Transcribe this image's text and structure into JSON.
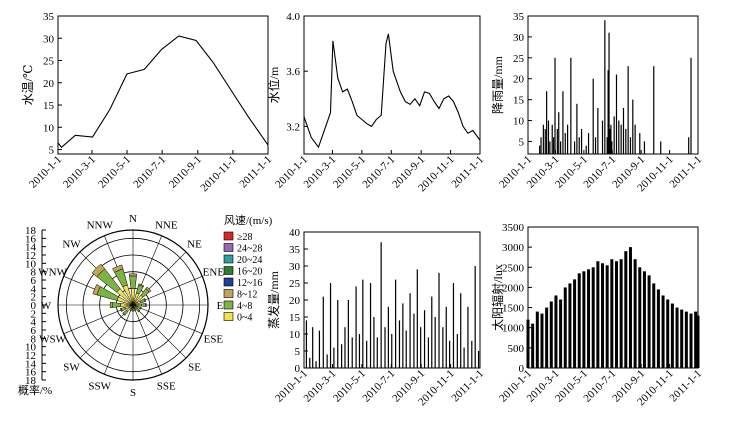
{
  "chart_data": [
    {
      "type": "line",
      "ylabel": "水温/℃",
      "x_ticks": [
        "2010-1-1",
        "2010-3-1",
        "2010-5-1",
        "2010-7-1",
        "2010-9-1",
        "2010-11-1",
        "2011-1-1"
      ],
      "y_ticks": [
        "5",
        "10",
        "15",
        "20",
        "25",
        "30",
        "35"
      ],
      "ylim": [
        4,
        35
      ],
      "x_days": [
        0,
        6,
        30,
        60,
        90,
        120,
        150,
        180,
        210,
        240,
        270,
        300,
        330,
        365
      ],
      "values": [
        6.5,
        5.5,
        8.2,
        7.8,
        14,
        22,
        23,
        27.5,
        30.5,
        29.5,
        24.5,
        18.5,
        12.5,
        6
      ]
    },
    {
      "type": "line",
      "ylabel": "水位/m",
      "x_ticks": [
        "2010-1-1",
        "2010-3-1",
        "2010-5-1",
        "2010-7-1",
        "2010-9-1",
        "2010-11-1",
        "2011-1-1"
      ],
      "y_ticks": [
        "3.2",
        "3.6",
        "4.0"
      ],
      "ylim": [
        3.0,
        4.0
      ],
      "x_days": [
        0,
        15,
        30,
        45,
        55,
        60,
        70,
        80,
        90,
        100,
        110,
        120,
        130,
        140,
        150,
        160,
        170,
        175,
        185,
        200,
        210,
        220,
        230,
        240,
        250,
        260,
        270,
        280,
        290,
        300,
        310,
        320,
        330,
        340,
        350,
        365
      ],
      "values": [
        3.27,
        3.12,
        3.05,
        3.2,
        3.3,
        3.82,
        3.55,
        3.45,
        3.47,
        3.38,
        3.28,
        3.25,
        3.22,
        3.2,
        3.25,
        3.28,
        3.8,
        3.87,
        3.6,
        3.45,
        3.38,
        3.36,
        3.4,
        3.35,
        3.45,
        3.44,
        3.38,
        3.33,
        3.4,
        3.42,
        3.38,
        3.3,
        3.2,
        3.15,
        3.17,
        3.1
      ]
    },
    {
      "type": "bar",
      "ylabel": "降雨量/mm",
      "x_ticks": [
        "2010-1-1",
        "2010-3-1",
        "2010-5-1",
        "2010-7-1",
        "2010-9-1",
        "2010-11-1",
        "2011-1-1"
      ],
      "y_ticks": [
        "5",
        "10",
        "15",
        "20",
        "25",
        "30",
        "35"
      ],
      "ylim": [
        2,
        35
      ],
      "x_days": [
        25,
        28,
        33,
        37,
        40,
        44,
        47,
        52,
        55,
        58,
        63,
        66,
        70,
        75,
        80,
        85,
        92,
        100,
        105,
        110,
        115,
        125,
        130,
        140,
        145,
        150,
        160,
        165,
        170,
        172,
        174,
        176,
        178,
        180,
        185,
        190,
        195,
        200,
        205,
        210,
        215,
        220,
        225,
        230,
        240,
        250,
        270,
        285,
        345,
        350
      ],
      "values": [
        4,
        6,
        9,
        8,
        17,
        10,
        5,
        9,
        6,
        25,
        8,
        12,
        5,
        17,
        7,
        9,
        25,
        5,
        14,
        6,
        8,
        4,
        7,
        20,
        6,
        13,
        10,
        34,
        6,
        22,
        31,
        8,
        9,
        5,
        11,
        21,
        10,
        9,
        13,
        8,
        23,
        6,
        15,
        9,
        7,
        5,
        23,
        5,
        6,
        25
      ]
    },
    {
      "type": "bar",
      "ylabel": "蒸发量/mm",
      "x_ticks": [
        "2010-1-1",
        "2010-3-1",
        "2010-5-1",
        "2010-7-1",
        "2010-9-1",
        "2010-11-1",
        "2011-1-1"
      ],
      "y_ticks": [
        "0",
        "5",
        "10",
        "15",
        "20",
        "25",
        "30",
        "35",
        "40"
      ],
      "ylim": [
        0,
        40
      ],
      "x_days": [
        5,
        12,
        18,
        25,
        32,
        40,
        48,
        55,
        62,
        70,
        78,
        85,
        92,
        100,
        108,
        115,
        122,
        130,
        138,
        145,
        152,
        160,
        168,
        175,
        182,
        190,
        198,
        205,
        212,
        220,
        228,
        235,
        242,
        250,
        258,
        265,
        272,
        280,
        288,
        295,
        302,
        310,
        318,
        325,
        332,
        340,
        348,
        355,
        362
      ],
      "values": [
        14,
        3,
        12,
        2,
        11,
        21,
        4,
        25,
        6,
        20,
        7,
        12,
        20,
        9,
        24,
        10,
        26,
        8,
        25,
        15,
        9,
        37,
        12,
        18,
        10,
        26,
        14,
        19,
        11,
        22,
        16,
        29,
        12,
        17,
        9,
        21,
        15,
        28,
        12,
        18,
        8,
        25,
        10,
        22,
        6,
        18,
        8,
        30,
        5
      ]
    },
    {
      "type": "bar",
      "ylabel": "太阳辐射/lux",
      "x_ticks": [
        "2010-1-1",
        "2010-3-1",
        "2010-5-1",
        "2010-7-1",
        "2010-9-1",
        "2010-11-1",
        "2011-1-1"
      ],
      "y_ticks": [
        "0",
        "500",
        "1000",
        "1500",
        "2000",
        "2500",
        "3000",
        "3500"
      ],
      "ylim": [
        0,
        3500
      ],
      "x_days": [
        0,
        10,
        20,
        30,
        40,
        50,
        60,
        70,
        80,
        90,
        100,
        110,
        120,
        130,
        140,
        150,
        160,
        170,
        180,
        190,
        200,
        210,
        220,
        230,
        240,
        250,
        260,
        270,
        280,
        290,
        300,
        310,
        320,
        330,
        340,
        350,
        360,
        365
      ],
      "values": [
        1200,
        1100,
        1400,
        1350,
        1500,
        1650,
        1800,
        1700,
        2000,
        2100,
        2200,
        2350,
        2400,
        2450,
        2500,
        2650,
        2600,
        2550,
        2700,
        2650,
        2700,
        2900,
        3000,
        2700,
        2500,
        2400,
        2300,
        2100,
        1950,
        1800,
        1700,
        1600,
        1500,
        1450,
        1400,
        1350,
        1400,
        1300
      ]
    },
    {
      "type": "wind-rose",
      "directions": [
        "N",
        "NNE",
        "NE",
        "ENE",
        "E",
        "ESE",
        "SE",
        "SSE",
        "S",
        "SSW",
        "SW",
        "WSW",
        "W",
        "WNW",
        "NW",
        "NNW"
      ],
      "radial_ticks": [
        "0",
        "2",
        "4",
        "6",
        "8",
        "10",
        "12",
        "14",
        "16",
        "18"
      ],
      "radial_unit": "概率/%",
      "legend_title": "风速/(m/s)",
      "bins": [
        {
          "label": "≥28",
          "color": "#d62728"
        },
        {
          "label": "24~28",
          "color": "#9467bd"
        },
        {
          "label": "20~24",
          "color": "#2ca0a0"
        },
        {
          "label": "16~20",
          "color": "#2e7d32"
        },
        {
          "label": "12~16",
          "color": "#1f3f99"
        },
        {
          "label": "8~12",
          "color": "#c6a15b"
        },
        {
          "label": "4~8",
          "color": "#7cb342"
        },
        {
          "label": "0~4",
          "color": "#f4e04d"
        }
      ],
      "freq_0_4": [
        4,
        3,
        3,
        2,
        2,
        1,
        1,
        1,
        1,
        1,
        2,
        2,
        3,
        4,
        5,
        5
      ],
      "freq_4_8": [
        3,
        2,
        2,
        1,
        1,
        1,
        1,
        0.5,
        0.5,
        0.5,
        1,
        1,
        2,
        5,
        6,
        4
      ],
      "freq_8_12": [
        0.5,
        0.3,
        0.5,
        0.2,
        0.2,
        0.1,
        0.1,
        0,
        0,
        0,
        0.2,
        0.2,
        0.5,
        1,
        1.5,
        1
      ]
    }
  ]
}
